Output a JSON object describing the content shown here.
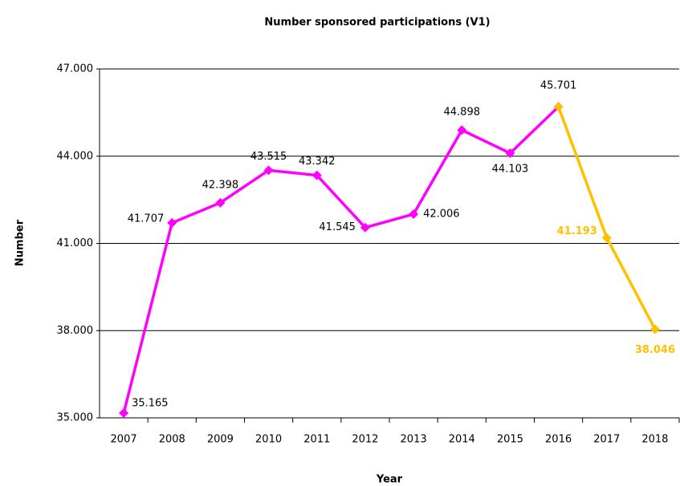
{
  "chart_data": {
    "type": "line",
    "title": "Number sponsored participations (V1)",
    "x_label": "Year",
    "y_label": "Number",
    "categories": [
      "2007",
      "2008",
      "2009",
      "2010",
      "2011",
      "2012",
      "2013",
      "2014",
      "2015",
      "2016",
      "2017",
      "2018"
    ],
    "series": [
      {
        "color": "#ff00ff",
        "values": [
          35165,
          41707,
          42398,
          43515,
          43342,
          41545,
          42006,
          44898,
          44103,
          45701,
          null,
          null
        ],
        "value_labels": [
          "35.165",
          "41.707",
          "42.398",
          "43.515",
          "43.342",
          "41.545",
          "42.006",
          "44.898",
          "44.103",
          "45.701",
          null,
          null
        ]
      },
      {
        "color": "#ffc000",
        "values": [
          null,
          null,
          null,
          null,
          null,
          null,
          null,
          null,
          null,
          45701,
          41193,
          38046
        ],
        "value_labels": [
          null,
          null,
          null,
          null,
          null,
          null,
          null,
          null,
          null,
          null,
          "41.193",
          "38.046"
        ]
      }
    ],
    "ylim": [
      35000,
      47000
    ],
    "yticks": [
      {
        "value": 35000,
        "label": "35.000"
      },
      {
        "value": 38000,
        "label": "38.000"
      },
      {
        "value": 41000,
        "label": "41.000"
      },
      {
        "value": 44000,
        "label": "44.000"
      },
      {
        "value": 47000,
        "label": "47.000"
      }
    ],
    "grid": true
  }
}
